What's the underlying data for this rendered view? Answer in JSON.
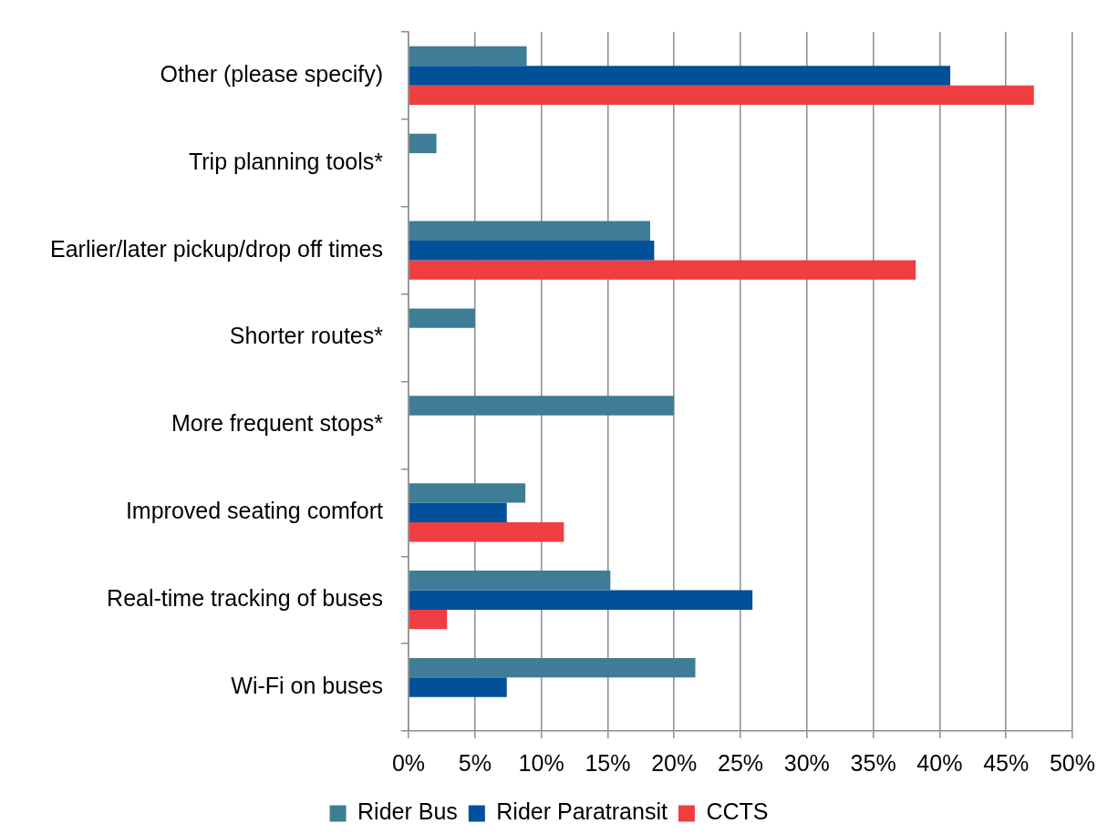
{
  "chart_data": {
    "type": "bar",
    "orientation": "horizontal",
    "categories": [
      "Other (please specify)",
      "Trip planning tools*",
      "Earlier/later pickup/drop off times",
      "Shorter routes*",
      "More frequent stops*",
      "Improved seating comfort",
      "Real-time tracking of buses",
      "Wi-Fi on buses"
    ],
    "series": [
      {
        "name": "Rider Bus",
        "color": "#3f7c96",
        "values": [
          8.9,
          2.1,
          18.2,
          5.0,
          20.0,
          8.8,
          15.2,
          21.6
        ]
      },
      {
        "name": "Rider Paratransit",
        "color": "#00509a",
        "values": [
          40.8,
          null,
          18.5,
          null,
          null,
          7.4,
          25.9,
          7.4
        ]
      },
      {
        "name": "CCTS",
        "color": "#ef3e42",
        "values": [
          47.1,
          null,
          38.2,
          null,
          null,
          11.7,
          2.9,
          null
        ]
      }
    ],
    "xlim": [
      0,
      50
    ],
    "xticks": [
      {
        "value": 0,
        "label": "0%"
      },
      {
        "value": 5,
        "label": "5%"
      },
      {
        "value": 10,
        "label": "10%"
      },
      {
        "value": 15,
        "label": "15%"
      },
      {
        "value": 20,
        "label": "20%"
      },
      {
        "value": 25,
        "label": "25%"
      },
      {
        "value": 30,
        "label": "30%"
      },
      {
        "value": 35,
        "label": "35%"
      },
      {
        "value": 40,
        "label": "40%"
      },
      {
        "value": 45,
        "label": "45%"
      },
      {
        "value": 50,
        "label": "50%"
      }
    ],
    "grid": "x",
    "legend": "bottom"
  }
}
